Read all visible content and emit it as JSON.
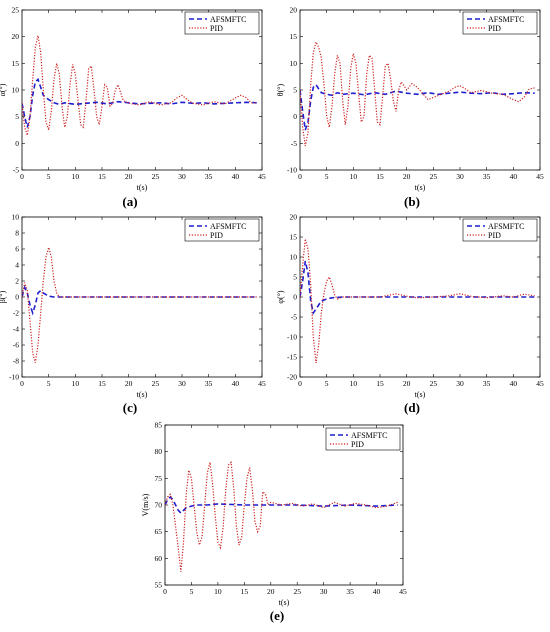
{
  "chart_data": [
    {
      "type": "line",
      "panel_label": "(a)",
      "xlabel": "t(s)",
      "ylabel": "α(°)",
      "xlim": [
        0,
        45
      ],
      "ylim": [
        -5,
        25
      ],
      "xticks": [
        0,
        5,
        10,
        15,
        20,
        25,
        30,
        35,
        40,
        45
      ],
      "yticks": [
        -5,
        0,
        5,
        10,
        15,
        20,
        25
      ],
      "legend": "top-right",
      "series": [
        {
          "name": "AFSMFTC",
          "color": "#1f1fcf",
          "style": "dashed",
          "x": [
            0,
            0.5,
            1,
            1.5,
            2,
            2.5,
            3,
            3.5,
            4,
            5,
            6,
            7,
            8,
            10,
            12,
            14,
            16,
            18,
            20,
            22,
            24,
            26,
            28,
            30,
            32,
            34,
            36,
            38,
            40,
            42,
            44
          ],
          "y": [
            7.5,
            5,
            3,
            5,
            9,
            11.5,
            12,
            10.5,
            9,
            8.2,
            7.6,
            7.3,
            7.6,
            7.3,
            7.5,
            7.7,
            7.4,
            7.8,
            7.6,
            7.4,
            7.5,
            7.6,
            7.4,
            7.7,
            7.5,
            7.6,
            7.4,
            7.5,
            7.6,
            7.7,
            7.6
          ]
        },
        {
          "name": "PID",
          "color": "#cc1f1f",
          "style": "dotted",
          "x": [
            0,
            0.5,
            1,
            1.5,
            2,
            2.5,
            3,
            3.5,
            4,
            4.5,
            5,
            5.5,
            6,
            6.5,
            7,
            7.5,
            8,
            8.5,
            9,
            9.5,
            10,
            10.5,
            11,
            11.5,
            12,
            12.5,
            13,
            13.5,
            14,
            14.5,
            15,
            15.5,
            16,
            16.5,
            17,
            17.5,
            18,
            19,
            20,
            22,
            24,
            26,
            28,
            29,
            30,
            31,
            32,
            34,
            36,
            38,
            40,
            41,
            42,
            43,
            44
          ],
          "y": [
            7.5,
            3,
            1.5,
            5,
            12,
            18,
            20.2,
            17,
            10,
            4,
            2.5,
            6,
            12,
            15,
            13,
            7,
            3,
            5,
            11,
            14.8,
            13,
            8,
            3.5,
            3,
            8,
            14,
            14.5,
            10,
            5,
            3.5,
            7,
            11,
            10.5,
            7,
            7.5,
            10,
            11,
            8,
            7.5,
            7.2,
            7.8,
            7.2,
            7.6,
            8.5,
            9,
            8.2,
            7.5,
            7.2,
            7.8,
            7.4,
            8.5,
            9,
            8.6,
            7.6,
            7.6
          ]
        }
      ]
    },
    {
      "type": "line",
      "panel_label": "(b)",
      "xlabel": "t(s)",
      "ylabel": "θ(°)",
      "xlim": [
        0,
        45
      ],
      "ylim": [
        -10,
        20
      ],
      "xticks": [
        0,
        5,
        10,
        15,
        20,
        25,
        30,
        35,
        40,
        45
      ],
      "yticks": [
        -10,
        -5,
        0,
        5,
        10,
        15,
        20
      ],
      "legend": "top-right",
      "series": [
        {
          "name": "AFSMFTC",
          "color": "#1f1fcf",
          "style": "dashed",
          "x": [
            0,
            0.5,
            1,
            1.5,
            2,
            2.5,
            3,
            3.5,
            4,
            5,
            6,
            7,
            8,
            10,
            12,
            14,
            16,
            18,
            20,
            22,
            24,
            26,
            28,
            30,
            32,
            34,
            36,
            38,
            40,
            42,
            44
          ],
          "y": [
            5,
            1,
            -2.5,
            -1,
            3,
            5.5,
            6,
            5.2,
            4.5,
            4.2,
            4,
            4.5,
            4.2,
            4.4,
            4.1,
            4.5,
            4.2,
            4.8,
            4.4,
            4.2,
            4.5,
            4.2,
            4.4,
            4.6,
            4.4,
            4.3,
            4.5,
            4.2,
            4.3,
            4.5,
            4.4
          ]
        },
        {
          "name": "PID",
          "color": "#cc1f1f",
          "style": "dotted",
          "x": [
            0,
            0.5,
            1,
            1.5,
            2,
            2.5,
            3,
            3.5,
            4,
            4.5,
            5,
            5.5,
            6,
            6.5,
            7,
            7.5,
            8,
            8.5,
            9,
            9.5,
            10,
            10.5,
            11,
            11.5,
            12,
            12.5,
            13,
            13.5,
            14,
            14.5,
            15,
            15.5,
            16,
            16.5,
            17,
            17.5,
            18,
            18.5,
            19,
            19.5,
            20,
            21,
            22,
            24,
            26,
            28,
            29,
            30,
            31,
            32,
            34,
            36,
            38,
            40,
            41,
            42,
            43,
            44
          ],
          "y": [
            5,
            -2,
            -5.5,
            -3,
            6,
            12,
            14,
            13,
            11,
            6,
            0,
            -2,
            2,
            8,
            11.5,
            10,
            3,
            -1.5,
            2,
            9,
            11.8,
            10,
            4,
            -1,
            0,
            8,
            11.5,
            11,
            5,
            -1,
            -1.5,
            4,
            9.5,
            10,
            7,
            3,
            1,
            5,
            6.5,
            5.8,
            5,
            6.2,
            5.5,
            3.2,
            4,
            4.8,
            5.5,
            5.8,
            5.2,
            4.5,
            4.9,
            4.4,
            4.2,
            3.2,
            2.8,
            3.6,
            5.2,
            5.4
          ]
        }
      ]
    },
    {
      "type": "line",
      "panel_label": "(c)",
      "xlabel": "t(s)",
      "ylabel": "β(°)",
      "xlim": [
        0,
        45
      ],
      "ylim": [
        -10,
        10
      ],
      "xticks": [
        0,
        5,
        10,
        15,
        20,
        25,
        30,
        35,
        40,
        45
      ],
      "yticks": [
        -10,
        -8,
        -6,
        -4,
        -2,
        0,
        2,
        4,
        6,
        8,
        10
      ],
      "legend": "top-right",
      "series": [
        {
          "name": "AFSMFTC",
          "color": "#1f1fcf",
          "style": "dashed",
          "x": [
            0,
            0.5,
            1,
            1.5,
            2,
            2.5,
            3,
            3.5,
            4,
            5,
            6,
            8,
            10,
            15,
            20,
            25,
            30,
            35,
            40,
            44
          ],
          "y": [
            0,
            1.2,
            0.5,
            -1,
            -2,
            -1,
            0.5,
            0.8,
            0.5,
            0.1,
            0,
            0,
            0,
            0,
            0,
            0,
            0,
            0,
            0,
            0
          ]
        },
        {
          "name": "PID",
          "color": "#cc1f1f",
          "style": "dotted",
          "x": [
            0,
            0.5,
            1,
            1.5,
            2,
            2.5,
            3,
            3.5,
            4,
            4.5,
            5,
            5.5,
            6,
            6.5,
            7,
            8,
            10,
            15,
            20,
            25,
            30,
            35,
            40,
            44
          ],
          "y": [
            0,
            1.8,
            0.8,
            -3,
            -7,
            -8.2,
            -6,
            -2,
            2,
            5,
            6.2,
            5,
            2,
            0.5,
            0,
            0,
            0,
            0,
            0,
            0,
            0,
            0,
            0,
            0
          ]
        }
      ]
    },
    {
      "type": "line",
      "panel_label": "(d)",
      "xlabel": "t(s)",
      "ylabel": "φ(°)",
      "xlim": [
        0,
        45
      ],
      "ylim": [
        -20,
        20
      ],
      "xticks": [
        0,
        5,
        10,
        15,
        20,
        25,
        30,
        35,
        40,
        45
      ],
      "yticks": [
        -20,
        -15,
        -10,
        -5,
        0,
        5,
        10,
        15,
        20
      ],
      "legend": "top-right",
      "series": [
        {
          "name": "AFSMFTC",
          "color": "#1f1fcf",
          "style": "dashed",
          "x": [
            0,
            0.5,
            1,
            1.5,
            2,
            2.5,
            3,
            3.5,
            4,
            5,
            6,
            8,
            10,
            15,
            20,
            25,
            30,
            35,
            40,
            44
          ],
          "y": [
            0,
            4,
            9,
            6,
            -1,
            -4,
            -3,
            -2,
            -1,
            -0.5,
            -0.2,
            0,
            0,
            0,
            0,
            0,
            0,
            0,
            0,
            0
          ]
        },
        {
          "name": "PID",
          "color": "#cc1f1f",
          "style": "dotted",
          "x": [
            0,
            0.5,
            1,
            1.5,
            2,
            2.5,
            3,
            3.5,
            4,
            4.5,
            5,
            5.5,
            6,
            6.5,
            7,
            8,
            10,
            12,
            15,
            18,
            20,
            22,
            25,
            28,
            30,
            32,
            35,
            38,
            40,
            42,
            44
          ],
          "y": [
            0,
            8,
            14.5,
            12,
            3,
            -10,
            -16.5,
            -12,
            -4,
            1,
            4,
            5,
            3,
            0.5,
            -0.5,
            0,
            0,
            0,
            0,
            0.8,
            0.2,
            -0.2,
            0,
            0.3,
            0.8,
            0.2,
            -0.2,
            0.3,
            0,
            0.7,
            0.3
          ]
        }
      ]
    },
    {
      "type": "line",
      "panel_label": "(e)",
      "xlabel": "t(s)",
      "ylabel": "V(m/s)",
      "xlim": [
        0,
        45
      ],
      "ylim": [
        55,
        85
      ],
      "xticks": [
        0,
        5,
        10,
        15,
        20,
        25,
        30,
        35,
        40,
        45
      ],
      "yticks": [
        55,
        60,
        65,
        70,
        75,
        80,
        85
      ],
      "legend": "top-right",
      "series": [
        {
          "name": "AFSMFTC",
          "color": "#1f1fcf",
          "style": "dashed",
          "x": [
            0,
            0.5,
            1,
            1.5,
            2,
            2.5,
            3,
            3.5,
            4,
            5,
            6,
            8,
            10,
            15,
            20,
            25,
            30,
            35,
            40,
            44
          ],
          "y": [
            70,
            71,
            71.5,
            71,
            70,
            69,
            68.5,
            69,
            69.5,
            69.8,
            70,
            70,
            70.2,
            70,
            70,
            70,
            69.8,
            70,
            69.8,
            70
          ]
        },
        {
          "name": "PID",
          "color": "#cc1f1f",
          "style": "dotted",
          "x": [
            0,
            0.5,
            1,
            1.5,
            2,
            2.5,
            3,
            3.5,
            4,
            4.5,
            5,
            5.5,
            6,
            6.5,
            7,
            7.5,
            8,
            8.5,
            9,
            9.5,
            10,
            10.5,
            11,
            11.5,
            12,
            12.5,
            13,
            13.5,
            14,
            14.5,
            15,
            15.5,
            16,
            16.5,
            17,
            17.5,
            18,
            18.5,
            19,
            19.5,
            20,
            22,
            24,
            26,
            28,
            30,
            32,
            34,
            36,
            38,
            40,
            42,
            44
          ],
          "y": [
            70,
            71.5,
            72,
            70,
            66,
            62,
            57.5,
            63,
            72,
            76.5,
            75,
            70,
            65,
            62.5,
            64,
            70,
            76,
            78,
            74,
            68,
            63,
            62,
            66,
            73,
            77.5,
            78,
            73,
            66,
            62.5,
            64,
            70,
            75,
            77,
            73,
            67,
            65,
            66,
            72.5,
            72,
            70,
            70.5,
            70,
            70.3,
            69.8,
            70.2,
            69.5,
            70.5,
            69.8,
            70.3,
            70,
            69.5,
            69.8,
            70.5
          ]
        }
      ]
    }
  ]
}
